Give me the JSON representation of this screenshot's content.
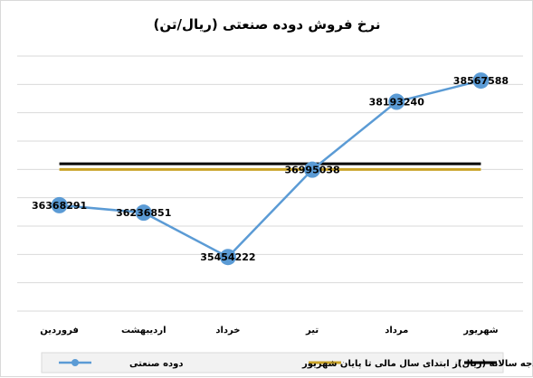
{
  "chart_data": {
    "type": "line",
    "title": "نرخ فروش دوده صنعتی (ریال/تن)",
    "categories": [
      "فروردین",
      "اردیبهشت",
      "خرداد",
      "تیر",
      "مرداد",
      "شهریور"
    ],
    "series": [
      {
        "name": "دوده صنعتی",
        "values": [
          36368291,
          36236851,
          35454222,
          36995038,
          38193240,
          38567588
        ],
        "color": "#5b9bd5",
        "markers": true,
        "data_labels": [
          "36368291",
          "36236851",
          "35454222",
          "36995038",
          "38193240",
          "38567588"
        ]
      },
      {
        "name": "از ابتدای سال مالی تا پایان شهریور",
        "values": [
          37000000,
          37000000,
          37000000,
          37000000,
          37000000,
          37000000
        ],
        "color": "#c9a227",
        "markers": false
      },
      {
        "name": "نرخ فروش در بودجه سالانه (ریال)",
        "values": [
          37100000,
          37100000,
          37100000,
          37100000,
          37100000,
          37100000
        ],
        "color": "#000000",
        "markers": false
      }
    ],
    "ylim": [
      34500000,
      39000000
    ],
    "y_axis_visible": false,
    "grid": true,
    "legend_position": "bottom"
  }
}
